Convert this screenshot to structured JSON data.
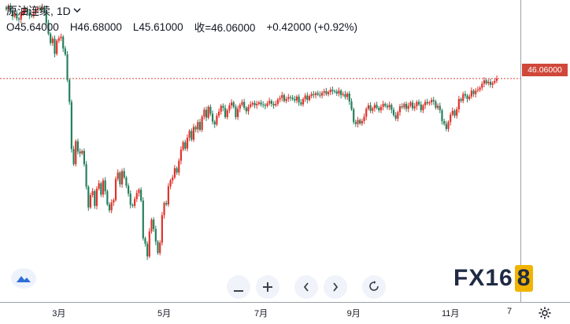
{
  "header": {
    "symbol": "原油连续",
    "separator": ",",
    "interval": "1D",
    "open": "O45.64000",
    "high": "H46.68000",
    "low": "L45.61000",
    "close": "收=46.06000",
    "change": "+0.42000 (+0.92%)"
  },
  "last_price_label": "46.06000",
  "logo": {
    "text": "FX16",
    "eight": "8"
  },
  "icons": {
    "minus": "minus-icon",
    "plus": "plus-icon",
    "left": "chevron-left-icon",
    "right": "chevron-right-icon",
    "reset": "reset-icon",
    "gear": "gear-icon",
    "cloud": "cloud-icon"
  },
  "colors": {
    "up": "#e0332b",
    "down": "#26805e",
    "price_line": "#d0483a"
  },
  "chart_data": {
    "type": "candlestick",
    "title": "原油连续, 1D",
    "x_ticks": [
      {
        "label": "3月",
        "index": 25
      },
      {
        "label": "5月",
        "index": 75
      },
      {
        "label": "7月",
        "index": 121
      },
      {
        "label": "9月",
        "index": 165
      },
      {
        "label": "11月",
        "index": 211
      },
      {
        "label": "7",
        "index": 239
      }
    ],
    "y_range": [
      5,
      60
    ],
    "last_price": 46.06,
    "grid": false,
    "closes": [
      60.2,
      60.8,
      59.9,
      58.7,
      59.4,
      58.3,
      58.1,
      59.2,
      59.8,
      60.3,
      59.6,
      58.9,
      58.8,
      59.7,
      60.1,
      60.5,
      60.2,
      60.7,
      59.5,
      57.4,
      55.2,
      53.3,
      54.2,
      51.1,
      53.8,
      54.3,
      54.6,
      52.2,
      51.0,
      45.8,
      41.3,
      31.7,
      28.6,
      33.3,
      31.2,
      30.8,
      31.3,
      28.6,
      24.0,
      19.8,
      22.3,
      23.1,
      20.1,
      23.6,
      24.7,
      22.4,
      25.3,
      23.1,
      20.4,
      19.2,
      20.8,
      21.3,
      25.6,
      26.9,
      24.5,
      27.2,
      25.9,
      24.2,
      22.6,
      20.3,
      20.1,
      21.5,
      22.7,
      23.4,
      21.2,
      13.5,
      12.4,
      9.8,
      14.9,
      17.3,
      15.4,
      12.8,
      10.5,
      12.6,
      18.2,
      20.7,
      20.4,
      24.1,
      25.3,
      25.9,
      27.8,
      26.9,
      29.3,
      31.6,
      33.1,
      31.8,
      34.0,
      35.4,
      33.6,
      36.2,
      35.7,
      37.2,
      35.6,
      38.3,
      39.7,
      38.1,
      40.3,
      38.9,
      37.3,
      36.7,
      38.5,
      39.3,
      40.5,
      40.1,
      38.2,
      39.6,
      40.6,
      41.2,
      40.3,
      38.2,
      39.9,
      40.7,
      41.3,
      40.1,
      39.4,
      40.3,
      40.8,
      41.1,
      40.6,
      40.9,
      41.2,
      40.8,
      40.7,
      40.5,
      41.0,
      41.5,
      40.9,
      40.6,
      40.9,
      41.8,
      42.1,
      42.7,
      41.5,
      41.9,
      42.3,
      42.2,
      41.9,
      41.6,
      42.4,
      41.2,
      40.8,
      41.9,
      42.6,
      41.7,
      42.5,
      42.9,
      42.7,
      43.1,
      42.8,
      42.6,
      43.2,
      43.5,
      42.9,
      43.3,
      43.8,
      43.5,
      43.4,
      43.0,
      43.6,
      42.7,
      42.9,
      42.3,
      43.0,
      41.4,
      39.8,
      37.2,
      36.8,
      37.6,
      36.9,
      37.4,
      38.3,
      39.9,
      40.6,
      39.5,
      40.0,
      40.7,
      40.1,
      39.6,
      40.3,
      40.9,
      40.5,
      40.2,
      40.7,
      39.7,
      38.6,
      37.9,
      39.2,
      40.4,
      40.2,
      40.9,
      39.9,
      40.5,
      41.2,
      40.0,
      40.4,
      41.3,
      40.8,
      39.6,
      40.6,
      41.3,
      41.0,
      41.2,
      41.7,
      41.4,
      40.1,
      40.5,
      39.6,
      37.4,
      36.8,
      35.8,
      37.2,
      38.7,
      39.5,
      38.5,
      39.8,
      41.9,
      41.5,
      42.9,
      42.6,
      41.9,
      42.4,
      43.6,
      42.9,
      43.6,
      43.8,
      44.2,
      45.0,
      45.7,
      45.1,
      45.4,
      44.8,
      45.2,
      45.6,
      46.06
    ]
  }
}
